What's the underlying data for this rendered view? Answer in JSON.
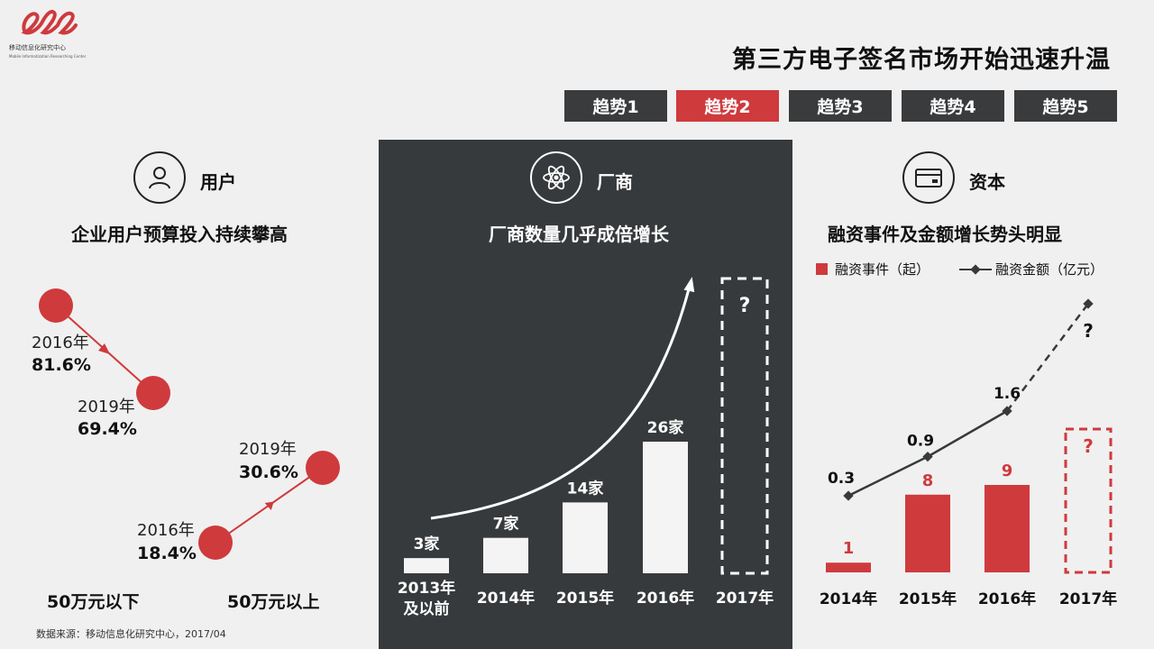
{
  "logo": {
    "name": "移动信息化研究中心",
    "subtitle": "Mobile Informatization Researching Center"
  },
  "title": "第三方电子签名市场开始迅速升温",
  "tabs": [
    {
      "label": "趋势1",
      "active": false
    },
    {
      "label": "趋势2",
      "active": true
    },
    {
      "label": "趋势3",
      "active": false
    },
    {
      "label": "趋势4",
      "active": false
    },
    {
      "label": "趋势5",
      "active": false
    }
  ],
  "colors": {
    "accent": "#cf3a3d",
    "dark": "#373a3c",
    "tab": "#393b3d"
  },
  "users": {
    "icon": "user-icon",
    "label": "用户",
    "subtitle": "企业用户预算投入持续攀高",
    "below": {
      "name": "50万元以下",
      "y2016_label": "2016年",
      "y2016_value": "81.6%",
      "y2019_label": "2019年",
      "y2019_value": "69.4%"
    },
    "above": {
      "name": "50万元以上",
      "y2016_label": "2016年",
      "y2016_value": "18.4%",
      "y2019_label": "2019年",
      "y2019_value": "30.6%"
    }
  },
  "vendors": {
    "icon": "atom-icon",
    "label": "厂商",
    "subtitle": "厂商数量几乎成倍增长"
  },
  "capital": {
    "icon": "card-icon",
    "label": "资本",
    "subtitle": "融资事件及金额增长势头明显",
    "legend_bar": "融资事件（起）",
    "legend_line": "融资金额（亿元）"
  },
  "source": "数据来源：移动信息化研究中心，2017/04",
  "chart_data": [
    {
      "type": "line",
      "title": "企业用户预算投入持续攀高",
      "categories": [
        "2016年",
        "2019年"
      ],
      "series": [
        {
          "name": "50万元以下",
          "values": [
            81.6,
            69.4
          ]
        },
        {
          "name": "50万元以上",
          "values": [
            18.4,
            30.6
          ]
        }
      ],
      "unit": "%"
    },
    {
      "type": "bar",
      "title": "厂商数量几乎成倍增长",
      "categories": [
        "2013年及以前",
        "2014年",
        "2015年",
        "2016年",
        "2017年"
      ],
      "values": [
        3,
        7,
        14,
        26,
        null
      ],
      "data_labels": [
        "3家",
        "7家",
        "14家",
        "26家",
        "?"
      ],
      "ylim": [
        0,
        30
      ],
      "projected": "2017年"
    },
    {
      "type": "bar",
      "title": "融资事件及金额增长势头明显",
      "categories": [
        "2014年",
        "2015年",
        "2016年",
        "2017年"
      ],
      "series": [
        {
          "name": "融资事件（起）",
          "type": "bar",
          "values": [
            1,
            8,
            9,
            null
          ],
          "labels": [
            "1",
            "8",
            "9",
            "?"
          ]
        },
        {
          "name": "融资金额（亿元）",
          "type": "line",
          "values": [
            0.3,
            0.9,
            1.6,
            null
          ],
          "labels": [
            "0.3",
            "0.9",
            "1.6",
            "?"
          ]
        }
      ],
      "projected": "2017年"
    }
  ]
}
